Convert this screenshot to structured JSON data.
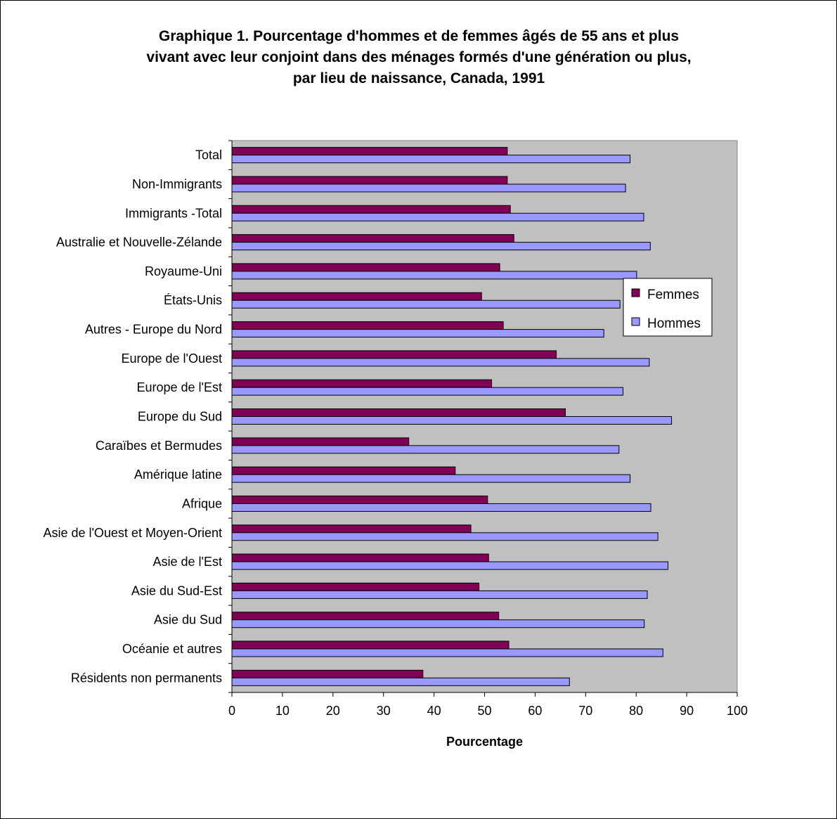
{
  "title_lines": [
    "Graphique 1. Pourcentage d'hommes et de femmes âgés de 55 ans et plus",
    "vivant avec leur conjoint dans des ménages formés d'une génération ou plus,",
    "par lieu de naissance, Canada, 1991"
  ],
  "colors": {
    "femmes": "#800055",
    "hommes": "#9999ff",
    "plot_background": "#c0c0c0"
  },
  "chart_data": {
    "type": "bar",
    "orientation": "horizontal",
    "title": "Graphique 1. Pourcentage d'hommes et de femmes âgés de 55 ans et plus vivant avec leur conjoint dans des ménages formés d'une génération ou plus, par lieu de naissance, Canada, 1991",
    "xlabel": "Pourcentage",
    "ylabel": "",
    "xlim": [
      0,
      100
    ],
    "xticks": [
      0,
      10,
      20,
      30,
      40,
      50,
      60,
      70,
      80,
      90,
      100
    ],
    "grid": false,
    "legend_position": "right",
    "categories": [
      "Total",
      "Non-Immigrants",
      "Immigrants -Total",
      "Australie et Nouvelle-Zélande",
      "Royaume-Uni",
      "États-Unis",
      "Autres - Europe du Nord",
      "Europe de l'Ouest",
      "Europe de l'Est",
      "Europe du Sud",
      "Caraïbes et Bermudes",
      "Amérique latine",
      "Afrique",
      "Asie de l'Ouest et Moyen-Orient",
      "Asie de l'Est",
      "Asie du Sud-Est",
      "Asie du Sud",
      "Océanie et autres",
      "Résidents non permanents"
    ],
    "series": [
      {
        "name": "Femmes",
        "values": [
          54.5,
          54.5,
          55.1,
          55.8,
          53.0,
          49.4,
          53.7,
          64.2,
          51.4,
          66.0,
          35.0,
          44.2,
          50.6,
          47.3,
          50.8,
          48.9,
          52.8,
          54.8,
          37.8
        ]
      },
      {
        "name": "Hommes",
        "values": [
          78.8,
          77.9,
          81.5,
          82.8,
          80.1,
          76.8,
          73.6,
          82.6,
          77.4,
          87.0,
          76.6,
          78.8,
          82.9,
          84.3,
          86.3,
          82.2,
          81.6,
          85.3,
          66.8
        ]
      }
    ]
  }
}
